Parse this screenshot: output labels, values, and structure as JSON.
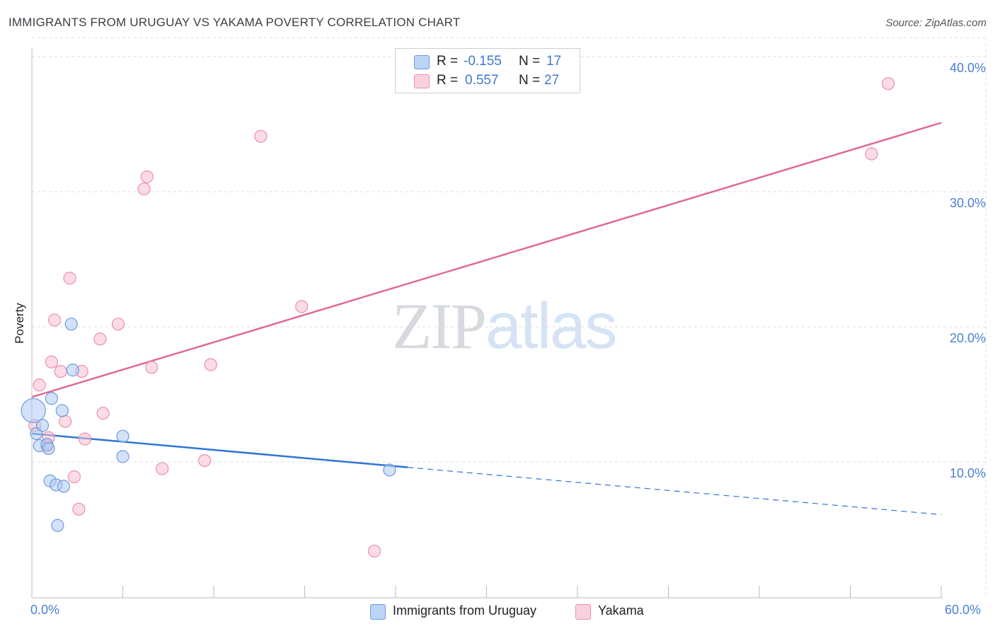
{
  "title": "IMMIGRANTS FROM URUGUAY VS YAKAMA POVERTY CORRELATION CHART",
  "source": "Source: ZipAtlas.com",
  "watermark": {
    "part1": "ZIP",
    "part2": "atlas"
  },
  "legend": {
    "rows": [
      {
        "r_key": "R =",
        "r_value": "-0.155",
        "n_key": "N =",
        "n_value": "17"
      },
      {
        "r_key": "R =",
        "r_value": "0.557",
        "n_key": "N =",
        "n_value": "27"
      }
    ]
  },
  "bottom_legend": [
    "Immigrants from Uruguay",
    "Yakama"
  ],
  "colors": {
    "blue_fill": "#aecbf2",
    "blue_stroke": "#6d9be0",
    "blue_line": "#2f75d6",
    "pink_fill": "#f8bfd0",
    "pink_stroke": "#ec8fac",
    "pink_line": "#e06a93",
    "tick_text": "#4a7fd4",
    "grid": "#dddddd"
  },
  "chart_data": {
    "type": "scatter",
    "title": "IMMIGRANTS FROM URUGUAY VS YAKAMA POVERTY CORRELATION CHART",
    "xlabel": "",
    "ylabel": "Poverty",
    "xlim": [
      0,
      60
    ],
    "ylim": [
      0,
      42
    ],
    "x_tick_labels": [
      "0.0%",
      "60.0%"
    ],
    "y_ticks": [
      10,
      20,
      30,
      40
    ],
    "y_tick_labels": [
      "10.0%",
      "20.0%",
      "30.0%",
      "40.0%"
    ],
    "grid": true,
    "series": [
      {
        "name": "Immigrants from Uruguay",
        "color": "blue",
        "points": [
          {
            "x": 0.1,
            "y": 13.8,
            "size": "large"
          },
          {
            "x": 0.3,
            "y": 12.1
          },
          {
            "x": 0.7,
            "y": 12.7
          },
          {
            "x": 0.5,
            "y": 11.2
          },
          {
            "x": 1.0,
            "y": 11.3
          },
          {
            "x": 1.1,
            "y": 11.0
          },
          {
            "x": 1.3,
            "y": 14.7
          },
          {
            "x": 2.0,
            "y": 13.8
          },
          {
            "x": 2.6,
            "y": 20.2
          },
          {
            "x": 2.7,
            "y": 16.8
          },
          {
            "x": 1.2,
            "y": 8.6
          },
          {
            "x": 1.6,
            "y": 8.3
          },
          {
            "x": 2.1,
            "y": 8.2
          },
          {
            "x": 1.7,
            "y": 5.3
          },
          {
            "x": 6.0,
            "y": 11.9
          },
          {
            "x": 6.0,
            "y": 10.4
          },
          {
            "x": 23.6,
            "y": 9.4
          }
        ],
        "trend": {
          "x0": 0,
          "y0": 12.1,
          "x1": 24.8,
          "y1": 9.6,
          "dashed_to_x": 60,
          "dashed_to_y": 6.1
        }
      },
      {
        "name": "Yakama",
        "color": "pink",
        "points": [
          {
            "x": 0.2,
            "y": 12.7
          },
          {
            "x": 0.5,
            "y": 15.7
          },
          {
            "x": 1.0,
            "y": 11.2
          },
          {
            "x": 1.1,
            "y": 11.8
          },
          {
            "x": 1.3,
            "y": 17.4
          },
          {
            "x": 1.5,
            "y": 20.5
          },
          {
            "x": 1.9,
            "y": 16.7
          },
          {
            "x": 2.2,
            "y": 13.0
          },
          {
            "x": 2.5,
            "y": 23.6
          },
          {
            "x": 2.8,
            "y": 8.9
          },
          {
            "x": 3.1,
            "y": 6.5
          },
          {
            "x": 3.3,
            "y": 16.7
          },
          {
            "x": 3.5,
            "y": 11.7
          },
          {
            "x": 4.5,
            "y": 19.1
          },
          {
            "x": 4.7,
            "y": 13.6
          },
          {
            "x": 5.7,
            "y": 20.2
          },
          {
            "x": 7.4,
            "y": 30.2
          },
          {
            "x": 7.6,
            "y": 31.1
          },
          {
            "x": 7.9,
            "y": 17.0
          },
          {
            "x": 8.6,
            "y": 9.5
          },
          {
            "x": 11.4,
            "y": 10.1
          },
          {
            "x": 11.8,
            "y": 17.2
          },
          {
            "x": 15.1,
            "y": 34.1
          },
          {
            "x": 17.8,
            "y": 21.5
          },
          {
            "x": 22.6,
            "y": 3.4
          },
          {
            "x": 55.4,
            "y": 32.8
          },
          {
            "x": 56.5,
            "y": 38.0
          }
        ],
        "trend": {
          "x0": 0,
          "y0": 14.8,
          "x1": 60,
          "y1": 35.1
        }
      }
    ]
  }
}
